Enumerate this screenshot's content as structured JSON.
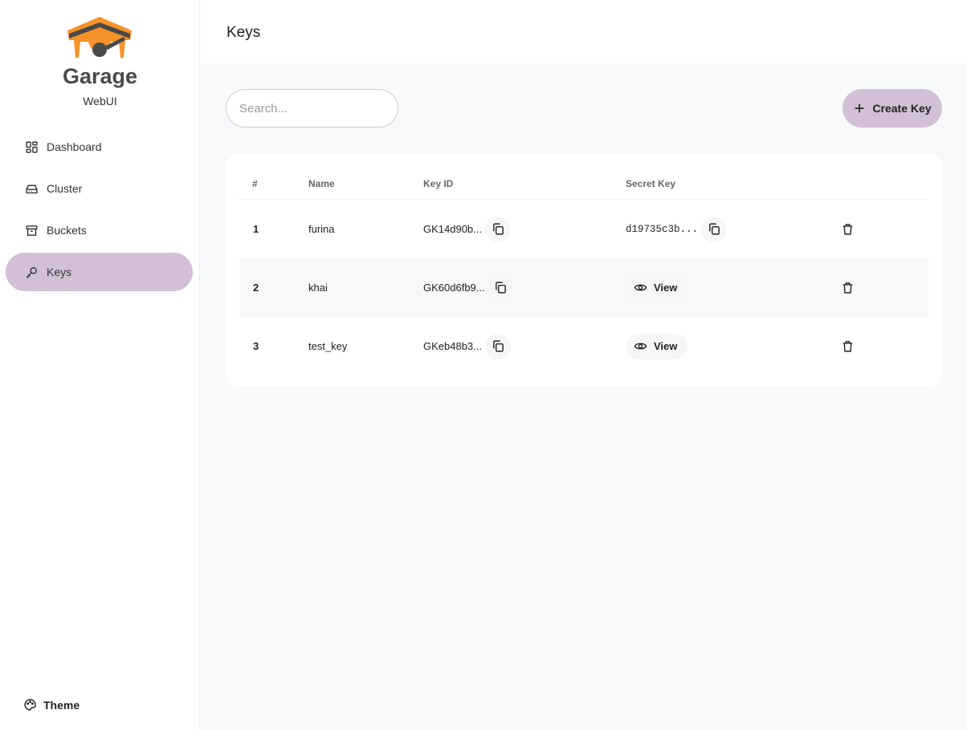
{
  "brand": {
    "name": "Garage",
    "subtitle": "WebUI",
    "accent": "#f7922a"
  },
  "sidebar": {
    "items": [
      {
        "label": "Dashboard",
        "icon": "dashboard-icon"
      },
      {
        "label": "Cluster",
        "icon": "drive-icon"
      },
      {
        "label": "Buckets",
        "icon": "archive-icon"
      },
      {
        "label": "Keys",
        "icon": "key-icon",
        "active": true
      }
    ],
    "theme_label": "Theme",
    "active_color": "#d1c0d6"
  },
  "header": {
    "title": "Keys"
  },
  "toolbar": {
    "search_placeholder": "Search...",
    "create_label": "Create Key"
  },
  "table": {
    "columns": [
      "#",
      "Name",
      "Key ID",
      "Secret Key"
    ],
    "rows": [
      {
        "num": "1",
        "name": "furina",
        "key_id": "GK14d90b...",
        "secret": "d19735c3b...",
        "secret_visible": true
      },
      {
        "num": "2",
        "name": "khai",
        "key_id": "GK60d6fb9...",
        "secret_label": "View",
        "secret_visible": false
      },
      {
        "num": "3",
        "name": "test_key",
        "key_id": "GKeb48b3...",
        "secret_label": "View",
        "secret_visible": false
      }
    ]
  }
}
